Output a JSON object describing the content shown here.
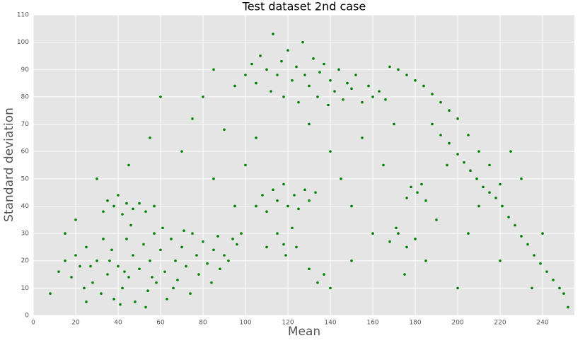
{
  "chart_data": {
    "type": "scatter",
    "title": "Test dataset 2nd case",
    "x_label": "Mean",
    "y_label": "Standard deviation",
    "color": "#008000",
    "grid": true,
    "xlim": [
      0,
      255
    ],
    "ylim": [
      0,
      110
    ],
    "xticks": [
      0,
      20,
      40,
      60,
      80,
      100,
      120,
      140,
      160,
      180,
      200,
      220,
      240
    ],
    "yticks": [
      0,
      10,
      20,
      30,
      40,
      50,
      60,
      70,
      80,
      90,
      100,
      110
    ],
    "x": [
      12,
      15,
      18,
      20,
      22,
      25,
      28,
      30,
      32,
      35,
      37,
      38,
      40,
      42,
      44,
      45,
      47,
      48,
      50,
      52,
      54,
      55,
      57,
      58,
      60,
      62,
      63,
      65,
      67,
      68,
      70,
      72,
      74,
      75,
      77,
      78,
      80,
      82,
      84,
      85,
      87,
      88,
      90,
      92,
      94,
      96,
      98,
      24,
      33,
      41,
      46,
      53,
      61,
      27,
      36,
      43,
      56,
      66,
      71,
      8,
      33,
      35,
      38,
      40,
      42,
      44,
      47,
      50,
      53,
      57,
      105,
      108,
      110,
      113,
      115,
      118,
      120,
      123,
      125,
      128,
      130,
      133,
      100,
      103,
      105,
      107,
      110,
      112,
      113,
      115,
      117,
      118,
      120,
      122,
      124,
      125,
      127,
      128,
      130,
      132,
      134,
      135,
      137,
      139,
      140,
      142,
      144,
      146,
      148,
      150,
      152,
      155,
      158,
      160,
      163,
      166,
      95,
      168,
      172,
      176,
      180,
      184,
      188,
      192,
      196,
      188,
      192,
      196,
      200,
      203,
      206,
      209,
      212,
      215,
      218,
      221,
      224,
      227,
      230,
      233,
      236,
      239,
      242,
      245,
      248,
      250,
      252,
      200,
      205,
      210,
      215,
      220,
      176,
      178,
      181,
      183,
      185,
      168,
      172,
      176,
      180,
      171,
      115,
      118,
      122,
      124,
      119,
      130,
      134,
      137,
      140,
      20,
      30,
      45,
      55,
      60,
      70,
      75,
      80,
      85,
      90,
      95,
      100,
      105,
      110,
      140,
      145,
      150,
      155,
      160,
      165,
      170,
      175,
      185,
      190,
      195,
      205,
      210,
      220,
      225,
      230,
      240,
      150,
      130,
      85,
      200,
      235,
      25,
      15
    ],
    "values": [
      16,
      20,
      14,
      22,
      18,
      25,
      12,
      20,
      8,
      15,
      24,
      6,
      18,
      10,
      28,
      14,
      22,
      5,
      17,
      26,
      9,
      20,
      30,
      12,
      24,
      16,
      6,
      28,
      20,
      13,
      25,
      18,
      8,
      30,
      22,
      15,
      27,
      19,
      12,
      24,
      29,
      17,
      22,
      20,
      28,
      26,
      30,
      10,
      28,
      4,
      33,
      3,
      32,
      18,
      20,
      16,
      14,
      10,
      31,
      8,
      38,
      42,
      40,
      44,
      37,
      41,
      39,
      41,
      38,
      40,
      40,
      44,
      38,
      46,
      42,
      48,
      40,
      44,
      39,
      46,
      42,
      45,
      88,
      92,
      85,
      95,
      90,
      82,
      103,
      88,
      93,
      80,
      97,
      86,
      91,
      78,
      100,
      88,
      84,
      94,
      80,
      89,
      92,
      77,
      86,
      82,
      90,
      79,
      85,
      83,
      88,
      78,
      84,
      80,
      82,
      79,
      84,
      91,
      90,
      88,
      86,
      84,
      81,
      78,
      75,
      70,
      66,
      63,
      59,
      56,
      53,
      50,
      47,
      45,
      43,
      40,
      36,
      33,
      29,
      26,
      22,
      19,
      16,
      13,
      10,
      8,
      3,
      72,
      66,
      60,
      55,
      48,
      43,
      47,
      45,
      48,
      42,
      27,
      30,
      25,
      28,
      32,
      30,
      26,
      32,
      25,
      22,
      17,
      12,
      15,
      10,
      35,
      50,
      55,
      65,
      80,
      60,
      72,
      80,
      50,
      68,
      40,
      55,
      65,
      25,
      60,
      50,
      40,
      65,
      30,
      55,
      70,
      15,
      20,
      35,
      55,
      30,
      40,
      20,
      60,
      50,
      30,
      20,
      70,
      90,
      10,
      10,
      5,
      30
    ]
  }
}
